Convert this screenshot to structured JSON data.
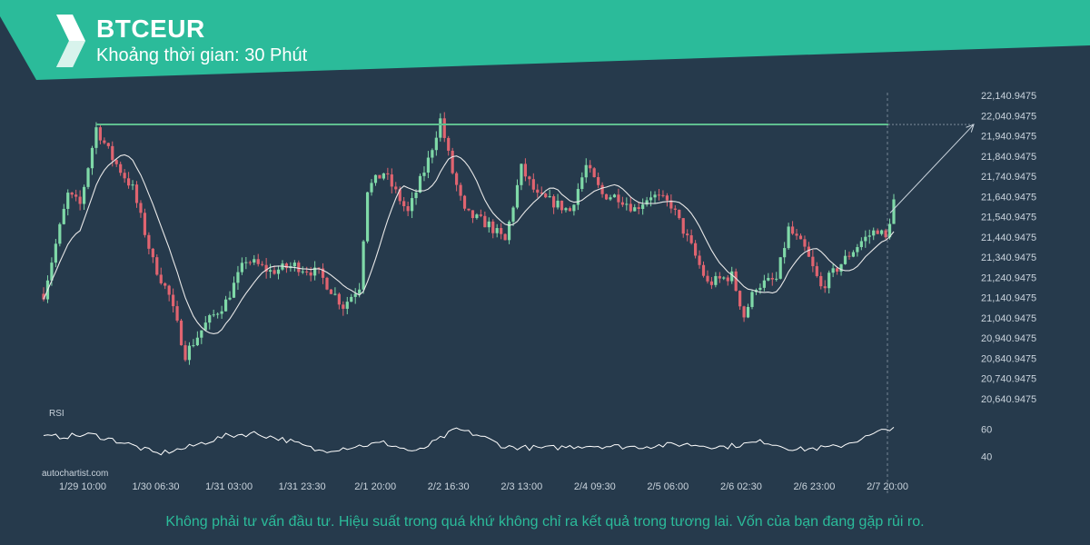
{
  "header": {
    "symbol": "BTCEUR",
    "timeframe_label": "Khoảng thời gian: 30 Phút",
    "brand_color": "#2bbb9a"
  },
  "watermark": "autochartist.com",
  "disclaimer": "Không phải tư vấn đầu tư. Hiệu suất trong quá khứ không chỉ ra kết quả trong tương lai. Vốn của bạn đang gặp rủi ro.",
  "chart_data": {
    "type": "candlestick",
    "price_axis": {
      "ticks": [
        22140.9475,
        22040.9475,
        21940.9475,
        21840.9475,
        21740.9475,
        21640.9475,
        21540.9475,
        21440.9475,
        21340.9475,
        21240.9475,
        21140.9475,
        21040.9475,
        20940.9475,
        20840.9475,
        20740.9475,
        20640.9475
      ],
      "tick_labels": [
        "22,140.9475",
        "22,040.9475",
        "21,940.9475",
        "21,840.9475",
        "21,740.9475",
        "21,640.9475",
        "21,540.9475",
        "21,440.9475",
        "21,340.9475",
        "21,240.9475",
        "21,140.9475",
        "21,040.9475",
        "20,940.9475",
        "20,840.9475",
        "20,740.9475",
        "20,640.9475"
      ],
      "ylim": [
        20640.9475,
        22140.9475
      ]
    },
    "time_axis": {
      "labels": [
        "1/29 10:00",
        "1/30 06:30",
        "1/31 03:00",
        "1/31 23:30",
        "2/1 20:00",
        "2/2 16:30",
        "2/3 13:00",
        "2/4 09:30",
        "2/5 06:00",
        "2/6 02:30",
        "2/6 23:00",
        "2/7 20:00"
      ],
      "highlighted": "2/7 20:00"
    },
    "resistance_level": 21997,
    "breakout_target": 21997,
    "key_points": [
      {
        "t": 0,
        "v": 21160
      },
      {
        "t": 6,
        "v": 21650
      },
      {
        "t": 9,
        "v": 21600
      },
      {
        "t": 13,
        "v": 21980
      },
      {
        "t": 17,
        "v": 21830
      },
      {
        "t": 22,
        "v": 21680
      },
      {
        "t": 27,
        "v": 21320
      },
      {
        "t": 31,
        "v": 21150
      },
      {
        "t": 35,
        "v": 20860
      },
      {
        "t": 40,
        "v": 21010
      },
      {
        "t": 45,
        "v": 21120
      },
      {
        "t": 50,
        "v": 21330
      },
      {
        "t": 56,
        "v": 21270
      },
      {
        "t": 62,
        "v": 21300
      },
      {
        "t": 68,
        "v": 21260
      },
      {
        "t": 74,
        "v": 21100
      },
      {
        "t": 78,
        "v": 21200
      },
      {
        "t": 80,
        "v": 21680
      },
      {
        "t": 84,
        "v": 21760
      },
      {
        "t": 90,
        "v": 21560
      },
      {
        "t": 95,
        "v": 21820
      },
      {
        "t": 98,
        "v": 22020
      },
      {
        "t": 101,
        "v": 21760
      },
      {
        "t": 104,
        "v": 21560
      },
      {
        "t": 110,
        "v": 21500
      },
      {
        "t": 114,
        "v": 21420
      },
      {
        "t": 118,
        "v": 21780
      },
      {
        "t": 122,
        "v": 21640
      },
      {
        "t": 126,
        "v": 21610
      },
      {
        "t": 130,
        "v": 21570
      },
      {
        "t": 134,
        "v": 21790
      },
      {
        "t": 138,
        "v": 21650
      },
      {
        "t": 142,
        "v": 21640
      },
      {
        "t": 146,
        "v": 21580
      },
      {
        "t": 150,
        "v": 21650
      },
      {
        "t": 155,
        "v": 21600
      },
      {
        "t": 160,
        "v": 21390
      },
      {
        "t": 164,
        "v": 21210
      },
      {
        "t": 170,
        "v": 21250
      },
      {
        "t": 173,
        "v": 21050
      },
      {
        "t": 176,
        "v": 21200
      },
      {
        "t": 181,
        "v": 21230
      },
      {
        "t": 184,
        "v": 21480
      },
      {
        "t": 188,
        "v": 21380
      },
      {
        "t": 192,
        "v": 21190
      },
      {
        "t": 197,
        "v": 21310
      },
      {
        "t": 202,
        "v": 21420
      },
      {
        "t": 206,
        "v": 21480
      },
      {
        "t": 208,
        "v": 21430
      },
      {
        "t": 210,
        "v": 21620
      }
    ],
    "rsi": {
      "label": "RSI",
      "ticks": [
        60,
        40
      ],
      "ylim": [
        35,
        65
      ],
      "key_points": [
        {
          "t": 0,
          "v": 54
        },
        {
          "t": 12,
          "v": 56
        },
        {
          "t": 20,
          "v": 50
        },
        {
          "t": 28,
          "v": 42
        },
        {
          "t": 35,
          "v": 46
        },
        {
          "t": 45,
          "v": 55
        },
        {
          "t": 52,
          "v": 57
        },
        {
          "t": 60,
          "v": 52
        },
        {
          "t": 68,
          "v": 44
        },
        {
          "t": 76,
          "v": 47
        },
        {
          "t": 84,
          "v": 50
        },
        {
          "t": 92,
          "v": 43
        },
        {
          "t": 98,
          "v": 53
        },
        {
          "t": 102,
          "v": 60
        },
        {
          "t": 108,
          "v": 55
        },
        {
          "t": 114,
          "v": 47
        },
        {
          "t": 124,
          "v": 46
        },
        {
          "t": 134,
          "v": 48
        },
        {
          "t": 146,
          "v": 47
        },
        {
          "t": 158,
          "v": 49
        },
        {
          "t": 168,
          "v": 47
        },
        {
          "t": 178,
          "v": 51
        },
        {
          "t": 186,
          "v": 45
        },
        {
          "t": 196,
          "v": 47
        },
        {
          "t": 204,
          "v": 55
        },
        {
          "t": 210,
          "v": 62
        }
      ]
    },
    "colors": {
      "up_candle": "#7fd9a8",
      "down_candle": "#e06470",
      "ma_line": "#e8e8e8",
      "resistance_line": "#5fbf8f",
      "rsi_line": "#ffffff",
      "axis_text": "#c9d3dc"
    }
  }
}
